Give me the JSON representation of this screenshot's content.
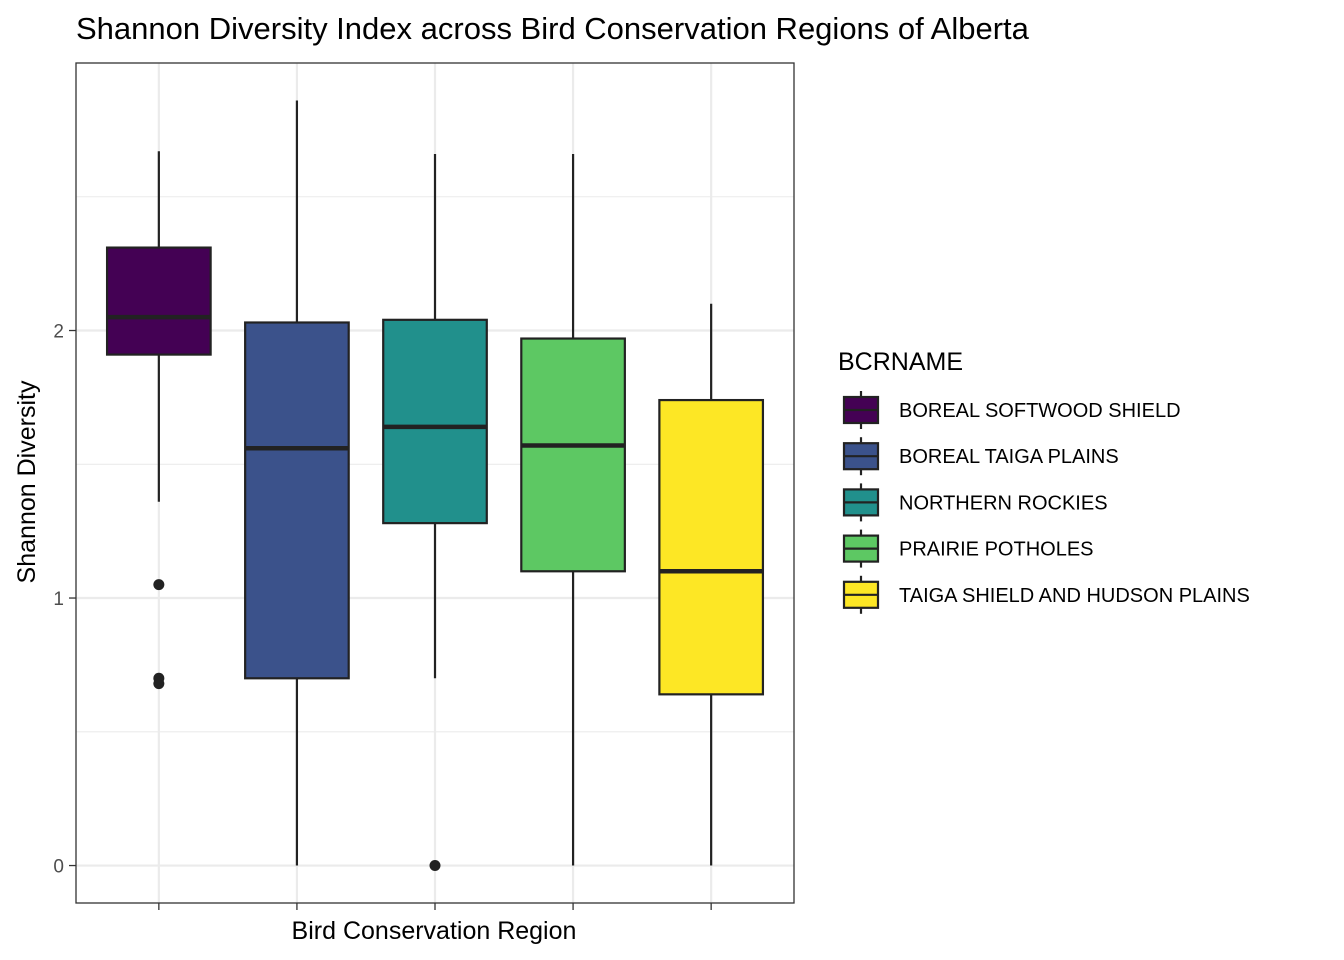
{
  "chart_data": {
    "type": "boxplot",
    "title": "Shannon Diversity Index across Bird Conservation Regions of Alberta",
    "xlabel": "Bird Conservation Region",
    "ylabel": "Shannon Diversity",
    "ylim": [
      -0.14,
      3.0
    ],
    "yticks": [
      0,
      1,
      2
    ],
    "grid": true,
    "legend": {
      "title": "BCRNAME",
      "placement": "right"
    },
    "categories": [
      "BOREAL SOFTWOOD SHIELD",
      "BOREAL TAIGA PLAINS",
      "NORTHERN ROCKIES",
      "PRAIRIE POTHOLES",
      "TAIGA SHIELD AND HUDSON PLAINS"
    ],
    "colors": [
      "#440154",
      "#3B528B",
      "#21908C",
      "#5DC863",
      "#FDE725"
    ],
    "series": [
      {
        "name": "BOREAL SOFTWOOD SHIELD",
        "lower_whisker": 1.36,
        "q1": 1.91,
        "median": 2.05,
        "q3": 2.31,
        "upper_whisker": 2.67,
        "outliers": [
          1.05,
          0.7,
          0.68
        ]
      },
      {
        "name": "BOREAL TAIGA PLAINS",
        "lower_whisker": 0.0,
        "q1": 0.7,
        "median": 1.56,
        "q3": 2.03,
        "upper_whisker": 2.86,
        "outliers": []
      },
      {
        "name": "NORTHERN ROCKIES",
        "lower_whisker": 0.7,
        "q1": 1.28,
        "median": 1.64,
        "q3": 2.04,
        "upper_whisker": 2.66,
        "outliers": [
          0.0
        ]
      },
      {
        "name": "PRAIRIE POTHOLES",
        "lower_whisker": 0.0,
        "q1": 1.1,
        "median": 1.57,
        "q3": 1.97,
        "upper_whisker": 2.66,
        "outliers": []
      },
      {
        "name": "TAIGA SHIELD AND HUDSON PLAINS",
        "lower_whisker": 0.0,
        "q1": 0.64,
        "median": 1.1,
        "q3": 1.74,
        "upper_whisker": 2.1,
        "outliers": []
      }
    ]
  }
}
